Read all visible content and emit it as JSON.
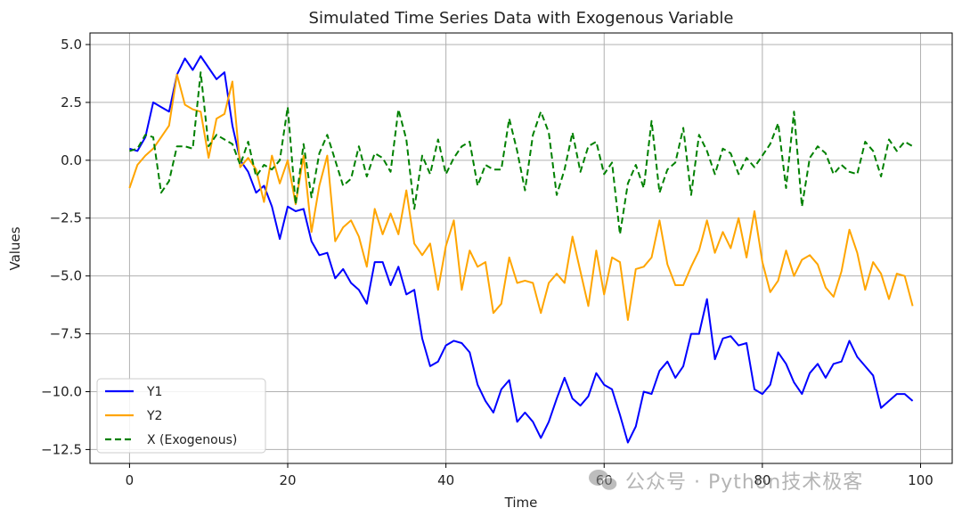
{
  "chart_data": {
    "type": "line",
    "title": "Simulated Time Series Data with Exogenous Variable",
    "xlabel": "Time",
    "ylabel": "Values",
    "xlim": [
      -5,
      104
    ],
    "ylim": [
      -13.1,
      5.5
    ],
    "xticks": [
      0,
      20,
      40,
      60,
      80,
      100
    ],
    "yticks": [
      5.0,
      2.5,
      0.0,
      -2.5,
      -5.0,
      -7.5,
      -10.0,
      -12.5
    ],
    "ytick_labels": [
      "5.0",
      "2.5",
      "0.0",
      "−2.5",
      "−5.0",
      "−7.5",
      "−10.0",
      "−12.5"
    ],
    "grid": true,
    "legend_position": "lower-left",
    "series": [
      {
        "name": "Y1",
        "color": "#0000ff",
        "dash": "solid",
        "values": [
          0.5,
          0.4,
          1.0,
          2.5,
          2.3,
          2.1,
          3.7,
          4.4,
          3.9,
          4.5,
          4.0,
          3.5,
          3.8,
          1.5,
          0.0,
          -0.5,
          -1.4,
          -1.1,
          -2.0,
          -3.4,
          -2.0,
          -2.2,
          -2.1,
          -3.5,
          -4.1,
          -4.0,
          -5.1,
          -4.7,
          -5.3,
          -5.6,
          -6.2,
          -4.4,
          -4.4,
          -5.4,
          -4.6,
          -5.8,
          -5.6,
          -7.7,
          -8.9,
          -8.7,
          -8.0,
          -7.8,
          -7.9,
          -8.3,
          -9.7,
          -10.4,
          -10.9,
          -9.9,
          -9.5,
          -11.3,
          -10.9,
          -11.3,
          -12.0,
          -11.3,
          -10.3,
          -9.4,
          -10.3,
          -10.6,
          -10.2,
          -9.2,
          -9.7,
          -9.9,
          -11.0,
          -12.2,
          -11.5,
          -10.0,
          -10.1,
          -9.1,
          -8.7,
          -9.4,
          -8.9,
          -7.5,
          -7.5,
          -6.0,
          -8.6,
          -7.7,
          -7.6,
          -8.0,
          -7.9,
          -9.9,
          -10.1,
          -9.7,
          -8.3,
          -8.8,
          -9.6,
          -10.1,
          -9.2,
          -8.8,
          -9.4,
          -8.8,
          -8.7,
          -7.8,
          -8.5,
          -8.9,
          -9.3,
          -10.7,
          -10.4,
          -10.1,
          -10.1,
          -10.4
        ]
      },
      {
        "name": "Y2",
        "color": "#ffa500",
        "dash": "solid",
        "values": [
          -1.2,
          -0.2,
          0.2,
          0.5,
          1.0,
          1.5,
          3.7,
          2.4,
          2.2,
          2.1,
          0.1,
          1.8,
          2.0,
          3.4,
          -0.3,
          0.1,
          -0.4,
          -1.8,
          0.2,
          -1.0,
          0.0,
          -1.9,
          0.2,
          -3.1,
          -1.1,
          0.2,
          -3.5,
          -2.9,
          -2.6,
          -3.3,
          -4.6,
          -2.1,
          -3.2,
          -2.3,
          -3.2,
          -1.3,
          -3.6,
          -4.1,
          -3.6,
          -5.6,
          -3.7,
          -2.6,
          -5.6,
          -3.9,
          -4.6,
          -4.4,
          -6.6,
          -6.2,
          -4.2,
          -5.3,
          -5.2,
          -5.3,
          -6.6,
          -5.3,
          -4.9,
          -5.3,
          -3.3,
          -4.8,
          -6.3,
          -3.9,
          -5.8,
          -4.2,
          -4.4,
          -6.9,
          -4.7,
          -4.6,
          -4.2,
          -2.6,
          -4.5,
          -5.4,
          -5.4,
          -4.6,
          -3.9,
          -2.6,
          -4.0,
          -3.1,
          -3.8,
          -2.5,
          -4.2,
          -2.2,
          -4.4,
          -5.7,
          -5.2,
          -3.9,
          -5.0,
          -4.3,
          -4.1,
          -4.5,
          -5.5,
          -5.9,
          -4.8,
          -3.0,
          -4.0,
          -5.6,
          -4.4,
          -4.9,
          -6.0,
          -4.9,
          -5.0,
          -6.3
        ]
      },
      {
        "name": "X (Exogenous)",
        "color": "#008000",
        "dash": "dashed",
        "values": [
          0.4,
          0.5,
          1.1,
          1.0,
          -1.4,
          -0.9,
          0.6,
          0.6,
          0.5,
          3.8,
          0.6,
          1.1,
          0.9,
          0.7,
          -0.2,
          0.8,
          -0.7,
          -0.2,
          -0.4,
          0.0,
          2.3,
          -1.9,
          0.7,
          -1.6,
          0.3,
          1.1,
          0.0,
          -1.1,
          -0.8,
          0.6,
          -0.7,
          0.3,
          0.1,
          -0.5,
          2.2,
          0.9,
          -2.1,
          0.2,
          -0.6,
          0.9,
          -0.6,
          0.1,
          0.6,
          0.8,
          -1.1,
          -0.2,
          -0.4,
          -0.4,
          1.8,
          0.4,
          -1.3,
          1.1,
          2.1,
          1.2,
          -1.5,
          -0.4,
          1.2,
          -0.5,
          0.6,
          0.8,
          -0.6,
          -0.1,
          -3.2,
          -1.0,
          -0.2,
          -1.2,
          1.7,
          -1.4,
          -0.4,
          -0.1,
          1.4,
          -1.5,
          1.1,
          0.4,
          -0.6,
          0.5,
          0.3,
          -0.6,
          0.1,
          -0.3,
          0.2,
          0.7,
          1.6,
          -1.2,
          2.1,
          -2.0,
          0.1,
          0.6,
          0.3,
          -0.6,
          -0.2,
          -0.5,
          -0.6,
          0.8,
          0.4,
          -0.7,
          0.9,
          0.4,
          0.8,
          0.6
        ]
      }
    ]
  },
  "watermark": {
    "icon": "wechat-icon",
    "text": "公众号 · Python技术极客"
  }
}
